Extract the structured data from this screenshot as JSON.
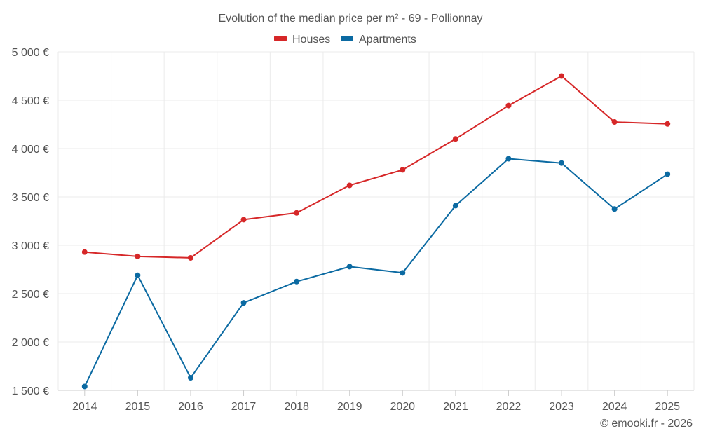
{
  "chart_data": {
    "type": "line",
    "title": "Evolution of the median price per m² - 69 - Pollionnay",
    "x": [
      "2014",
      "2015",
      "2016",
      "2017",
      "2018",
      "2019",
      "2020",
      "2021",
      "2022",
      "2023",
      "2024",
      "2025"
    ],
    "series": [
      {
        "name": "Houses",
        "color": "#d62728",
        "values": [
          2930,
          2885,
          2870,
          3265,
          3335,
          3620,
          3780,
          4100,
          4445,
          4750,
          4275,
          4255
        ]
      },
      {
        "name": "Apartments",
        "color": "#0b6aa2",
        "values": [
          1540,
          2690,
          1630,
          2405,
          2625,
          2780,
          2715,
          3410,
          3895,
          3850,
          3375,
          3735
        ]
      }
    ],
    "ylim": [
      1500,
      5000
    ],
    "yticks": [
      1500,
      2000,
      2500,
      3000,
      3500,
      4000,
      4500,
      5000
    ],
    "ytick_labels": [
      "1 500 €",
      "2 000 €",
      "2 500 €",
      "3 000 €",
      "3 500 €",
      "4 000 €",
      "4 500 €",
      "5 000 €"
    ],
    "grid": true,
    "legend_position": "top-center",
    "xlabel": "",
    "ylabel": ""
  },
  "credit": "© emooki.fr - 2026"
}
